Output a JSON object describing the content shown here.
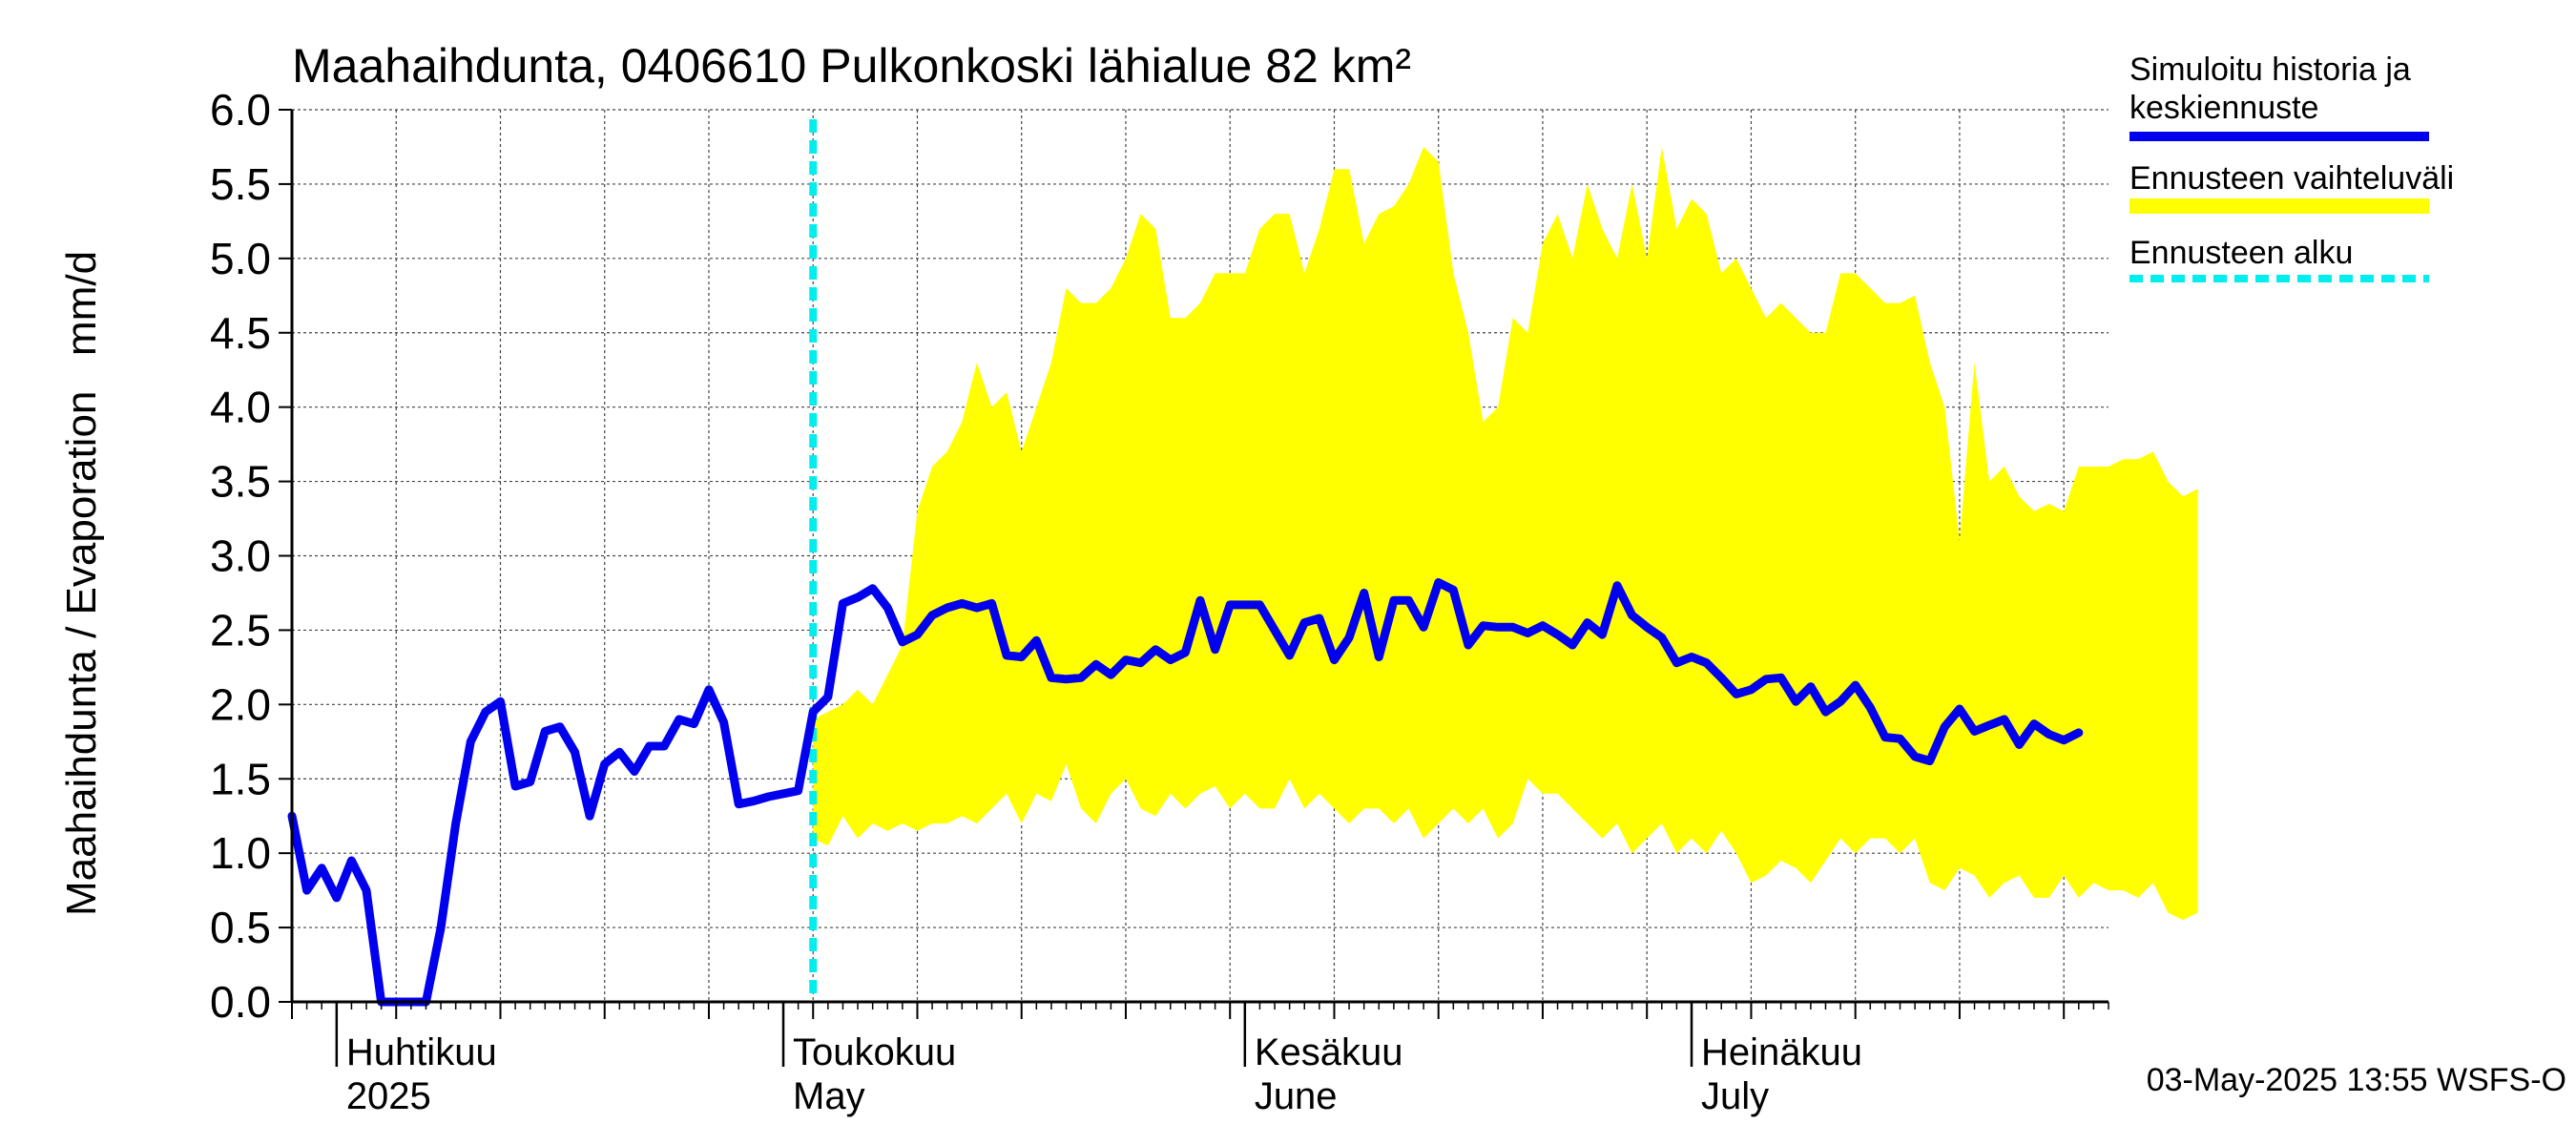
{
  "chart_data": {
    "type": "line",
    "title": "Maahaihdunta, 0406610 Pulkonkoski lähialue 82 km²",
    "ylabel": "Maahaihdunta / Evaporation   mm/d",
    "ylim": [
      0,
      6
    ],
    "yticks": [
      "0.0",
      "0.5",
      "1.0",
      "1.5",
      "2.0",
      "2.5",
      "3.0",
      "3.5",
      "4.0",
      "4.5",
      "5.0",
      "5.5",
      "6.0"
    ],
    "x_start": "2025-03-29",
    "x_end": "2025-07-29",
    "grid": true,
    "month_labels": [
      {
        "date": "2025-04-01",
        "line1": "Huhtikuu",
        "line2": "2025"
      },
      {
        "date": "2025-05-01",
        "line1": "Toukokuu",
        "line2": "May"
      },
      {
        "date": "2025-06-01",
        "line1": "Kesäkuu",
        "line2": "June"
      },
      {
        "date": "2025-07-01",
        "line1": "Heinäkuu",
        "line2": "July"
      }
    ],
    "forecast_start": "2025-05-03",
    "legend": {
      "placement": "right",
      "items": [
        {
          "line1": "Simuloitu historia ja",
          "line2": "keskiennuste",
          "color": "#0000ee",
          "style": "solid"
        },
        {
          "line1": "Ennusteen vaihteluväli",
          "line2": "",
          "color": "#ffff00",
          "style": "band"
        },
        {
          "line1": "Ennusteen alku",
          "line2": "",
          "color": "#00eeee",
          "style": "dashed"
        }
      ]
    },
    "footer": "03-May-2025 13:55 WSFS-O",
    "series": [
      {
        "name": "Simuloitu historia ja keskiennuste",
        "color": "#0000ee",
        "start": "2025-03-29",
        "values": [
          1.25,
          0.75,
          0.9,
          0.7,
          0.95,
          0.75,
          0.0,
          0.0,
          0.0,
          0.0,
          0.5,
          1.2,
          1.75,
          1.95,
          2.02,
          1.45,
          1.48,
          1.82,
          1.85,
          1.68,
          1.25,
          1.6,
          1.68,
          1.55,
          1.72,
          1.72,
          1.9,
          1.87,
          2.1,
          1.88,
          1.33,
          1.35,
          1.38,
          1.4,
          1.42,
          1.95,
          2.05,
          2.68,
          2.72,
          2.78,
          2.65,
          2.42,
          2.47,
          2.6,
          2.65,
          2.68,
          2.65,
          2.68,
          2.33,
          2.32,
          2.43,
          2.18,
          2.17,
          2.18,
          2.27,
          2.2,
          2.3,
          2.28,
          2.37,
          2.3,
          2.35,
          2.7,
          2.37,
          2.67,
          2.67,
          2.67,
          2.5,
          2.33,
          2.55,
          2.58,
          2.3,
          2.45,
          2.75,
          2.32,
          2.7,
          2.7,
          2.52,
          2.82,
          2.77,
          2.4,
          2.53,
          2.52,
          2.52,
          2.48,
          2.53,
          2.47,
          2.4,
          2.55,
          2.47,
          2.8,
          2.6,
          2.52,
          2.45,
          2.28,
          2.32,
          2.28,
          2.18,
          2.07,
          2.1,
          2.17,
          2.18,
          2.02,
          2.12,
          1.95,
          2.02,
          2.13,
          1.98,
          1.78,
          1.77,
          1.65,
          1.62,
          1.85,
          1.97,
          1.82,
          1.86,
          1.9,
          1.73,
          1.87,
          1.8,
          1.76,
          1.81
        ]
      }
    ],
    "band": {
      "name": "Ennusteen vaihteluväli",
      "color": "#ffff00",
      "start": "2025-05-03",
      "upper": [
        1.9,
        1.95,
        2.0,
        2.1,
        2.0,
        2.2,
        2.4,
        3.3,
        3.6,
        3.7,
        3.9,
        4.3,
        4.0,
        4.1,
        3.7,
        4.0,
        4.3,
        4.8,
        4.7,
        4.7,
        4.8,
        5.0,
        5.3,
        5.2,
        4.6,
        4.6,
        4.7,
        4.9,
        4.9,
        4.9,
        5.2,
        5.3,
        5.3,
        4.9,
        5.2,
        5.6,
        5.6,
        5.1,
        5.3,
        5.35,
        5.5,
        5.75,
        5.65,
        4.9,
        4.5,
        3.9,
        4.0,
        4.6,
        4.5,
        5.1,
        5.3,
        5.0,
        5.5,
        5.2,
        5.0,
        5.5,
        5.0,
        5.75,
        5.2,
        5.4,
        5.3,
        4.9,
        5.0,
        4.8,
        4.6,
        4.7,
        4.6,
        4.5,
        4.5,
        4.9,
        4.9,
        4.8,
        4.7,
        4.7,
        4.75,
        4.3,
        4.0,
        3.1,
        4.3,
        3.5,
        3.6,
        3.4,
        3.3,
        3.35,
        3.3,
        3.6,
        3.6,
        3.6,
        3.65,
        3.65,
        3.7,
        3.5,
        3.4,
        3.45
      ],
      "lower": [
        1.1,
        1.05,
        1.25,
        1.1,
        1.2,
        1.15,
        1.2,
        1.15,
        1.2,
        1.2,
        1.25,
        1.2,
        1.3,
        1.4,
        1.2,
        1.4,
        1.35,
        1.6,
        1.3,
        1.2,
        1.4,
        1.5,
        1.3,
        1.25,
        1.4,
        1.3,
        1.4,
        1.45,
        1.3,
        1.4,
        1.3,
        1.3,
        1.5,
        1.3,
        1.4,
        1.3,
        1.2,
        1.3,
        1.3,
        1.2,
        1.3,
        1.1,
        1.2,
        1.3,
        1.2,
        1.3,
        1.1,
        1.2,
        1.5,
        1.4,
        1.4,
        1.3,
        1.2,
        1.1,
        1.2,
        1.0,
        1.1,
        1.2,
        1.0,
        1.1,
        1.0,
        1.15,
        1.0,
        0.8,
        0.85,
        0.95,
        0.9,
        0.8,
        0.95,
        1.1,
        1.0,
        1.1,
        1.1,
        1.0,
        1.1,
        0.8,
        0.75,
        0.9,
        0.85,
        0.7,
        0.8,
        0.85,
        0.7,
        0.7,
        0.85,
        0.7,
        0.8,
        0.75,
        0.75,
        0.7,
        0.8,
        0.6,
        0.55,
        0.6
      ]
    }
  }
}
